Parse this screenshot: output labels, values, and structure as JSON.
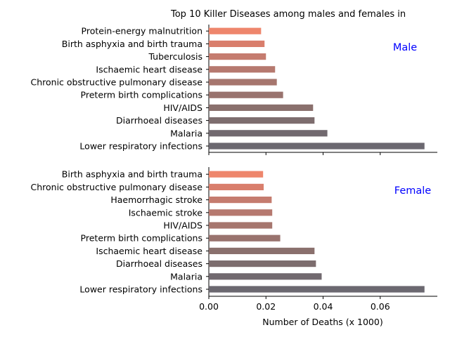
{
  "chart_data": [
    {
      "type": "bar",
      "orientation": "horizontal",
      "title": "Top 10 Killer Diseases among males and females in",
      "annotation": "Male",
      "categories": [
        "Lower respiratory infections",
        "Malaria",
        "Diarrhoeal diseases",
        "HIV/AIDS",
        "Preterm birth complications",
        "Chronic obstructive pulmonary disease",
        "Ischaemic heart disease",
        "Tuberculosis",
        "Birth asphyxia and birth trauma",
        "Protein-energy malnutrition"
      ],
      "values": [
        0.0755,
        0.0415,
        0.037,
        0.0365,
        0.026,
        0.0238,
        0.0232,
        0.02,
        0.0195,
        0.0183
      ],
      "xlim": [
        0,
        0.08
      ],
      "xticks": [
        "0.00",
        "0.02",
        "0.04",
        "0.06"
      ],
      "grid": false
    },
    {
      "type": "bar",
      "orientation": "horizontal",
      "annotation": "Female",
      "categories": [
        "Lower respiratory infections",
        "Malaria",
        "Diarrhoeal diseases",
        "Ischaemic heart disease",
        "Preterm birth complications",
        "HIV/AIDS",
        "Ischaemic stroke",
        "Haemorrhagic stroke",
        "Chronic obstructive pulmonary disease",
        "Birth asphyxia and birth trauma"
      ],
      "values": [
        0.0755,
        0.0395,
        0.0375,
        0.037,
        0.025,
        0.0222,
        0.0222,
        0.022,
        0.0192,
        0.019
      ],
      "xlim": [
        0,
        0.08
      ],
      "xticks": [
        "0.00",
        "0.02",
        "0.04",
        "0.06"
      ],
      "xlabel": "Number of Deaths (x 1000)",
      "grid": false
    }
  ],
  "colors": {
    "bar_gradient": [
      "#6b6870",
      "#71696f",
      "#7d6d6e",
      "#8a706d",
      "#99736e",
      "#a6766e",
      "#b6796f",
      "#c57c6f",
      "#d97e6c",
      "#ee866c"
    ],
    "annotation": "#0000ff"
  }
}
